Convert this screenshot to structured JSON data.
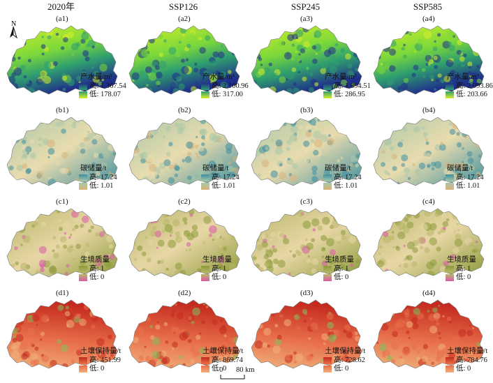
{
  "columns": [
    "2020年",
    "SSP126",
    "SSP245",
    "SSP585"
  ],
  "north_label": "N",
  "scale_bar": {
    "zero": "0",
    "length": "80 km"
  },
  "rows": [
    {
      "key": "a",
      "legend_title": "产水量/m³",
      "colors": {
        "high": "#1f2f8a",
        "mid": "#2f9e6f",
        "low": "#d7ef2a",
        "accent": "#7bd83a"
      },
      "panels": [
        {
          "id": "(a1)",
          "high": "高: 1 367.54",
          "low": "低: 178.07"
        },
        {
          "id": "(a2)",
          "high": "高: 2 100.96",
          "low": "低: 317.00"
        },
        {
          "id": "(a3)",
          "high": "高: 1 894.51",
          "low": "低: 286.95"
        },
        {
          "id": "(a4)",
          "high": "高: 2 093.86",
          "low": "低: 203.66"
        }
      ]
    },
    {
      "key": "b",
      "legend_title": "碳储量/t",
      "colors": {
        "high": "#3f8fa0",
        "mid": "#a9c7a8",
        "low": "#d9b27a",
        "accent": "#e9dcae"
      },
      "panels": [
        {
          "id": "(b1)",
          "high": "高: 17.24",
          "low": "低: 1.01"
        },
        {
          "id": "(b2)",
          "high": "高: 17.24",
          "low": "低: 1.01"
        },
        {
          "id": "(b3)",
          "high": "高: 17.24",
          "low": "低: 1.01"
        },
        {
          "id": "(b4)",
          "high": "高: 17.24",
          "low": "低: 1.01"
        }
      ]
    },
    {
      "key": "c",
      "legend_title": "生境质量",
      "colors": {
        "high": "#8c9a3a",
        "mid": "#b8b66a",
        "low": "#d95aa8",
        "accent": "#e8d7a6"
      },
      "panels": [
        {
          "id": "(c1)",
          "high": "高: 1",
          "low": "低: 0"
        },
        {
          "id": "(c2)",
          "high": "高: 1",
          "low": "低: 0"
        },
        {
          "id": "(c3)",
          "high": "高: 1",
          "low": "低: 0"
        },
        {
          "id": "(c4)",
          "high": "高: 1",
          "low": "低: 0"
        }
      ]
    },
    {
      "key": "d",
      "legend_title": "土壤保持量/t",
      "colors": {
        "high": "#c42a1f",
        "mid": "#e8704a",
        "low": "#f0b07a",
        "accent": "#7fbf5a"
      },
      "panels": [
        {
          "id": "(d1)",
          "high": "高: 451.99",
          "low": "低: 0"
        },
        {
          "id": "(d2)",
          "high": "高: 869.74",
          "low": "低: 0"
        },
        {
          "id": "(d3)",
          "high": "高: 728.62",
          "low": "低: 0"
        },
        {
          "id": "(d4)",
          "high": "高: 784.76",
          "low": "低: 0"
        }
      ]
    }
  ]
}
